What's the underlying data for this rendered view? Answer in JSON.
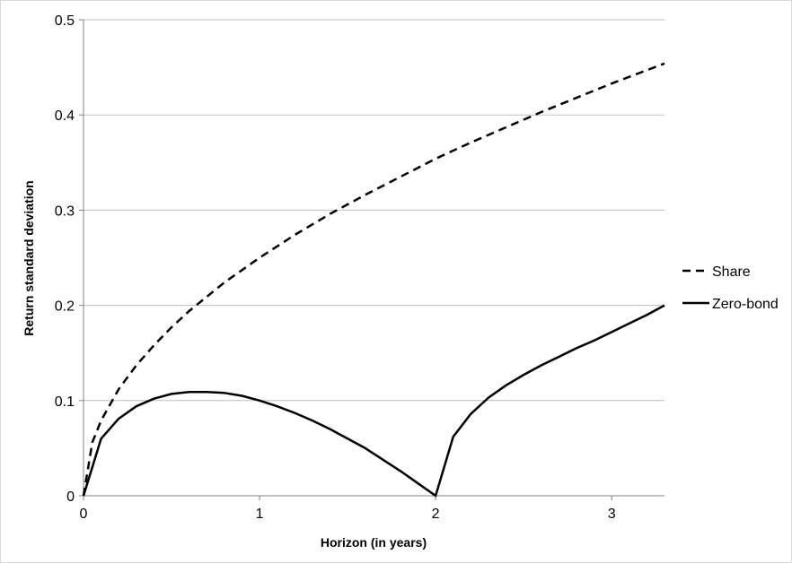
{
  "chart_data": {
    "type": "line",
    "title": "",
    "xlabel": "Horizon (in years)",
    "ylabel": "Return standard deviation",
    "xlim": [
      0,
      3.3
    ],
    "ylim": [
      0,
      0.5
    ],
    "x_ticks": [
      0,
      1,
      2,
      3
    ],
    "x_tick_labels": [
      "0",
      "1",
      "2",
      "3"
    ],
    "y_ticks": [
      0,
      0.1,
      0.2,
      0.3,
      0.4,
      0.5
    ],
    "y_tick_labels": [
      "0",
      "0.1",
      "0.2",
      "0.3",
      "0.4",
      "0.5"
    ],
    "grid": "horizontal",
    "legend_position": "right",
    "colors": {
      "line": "#000000",
      "grid": "#bfbfbf",
      "axis": "#808080"
    },
    "series": [
      {
        "name": "Share",
        "style": "dashed",
        "x": [
          0,
          0.05,
          0.1,
          0.2,
          0.3,
          0.4,
          0.5,
          0.6,
          0.7,
          0.8,
          0.9,
          1.0,
          1.2,
          1.4,
          1.6,
          1.8,
          2.0,
          2.2,
          2.4,
          2.6,
          2.8,
          3.0,
          3.2,
          3.3
        ],
        "y": [
          0,
          0.056,
          0.079,
          0.112,
          0.137,
          0.158,
          0.177,
          0.194,
          0.209,
          0.224,
          0.237,
          0.25,
          0.274,
          0.296,
          0.316,
          0.335,
          0.354,
          0.371,
          0.387,
          0.403,
          0.418,
          0.433,
          0.447,
          0.454
        ]
      },
      {
        "name": "Zero-bond",
        "style": "solid",
        "x": [
          0,
          0.1,
          0.2,
          0.3,
          0.4,
          0.5,
          0.6,
          0.7,
          0.8,
          0.9,
          1.0,
          1.1,
          1.2,
          1.3,
          1.4,
          1.5,
          1.6,
          1.7,
          1.8,
          1.9,
          2.0,
          2.1,
          2.2,
          2.3,
          2.4,
          2.5,
          2.6,
          2.7,
          2.8,
          2.9,
          3.0,
          3.1,
          3.2,
          3.3
        ],
        "y": [
          0,
          0.06,
          0.081,
          0.094,
          0.102,
          0.107,
          0.109,
          0.109,
          0.108,
          0.105,
          0.1,
          0.094,
          0.087,
          0.079,
          0.07,
          0.06,
          0.05,
          0.038,
          0.026,
          0.013,
          0,
          0.062,
          0.086,
          0.103,
          0.116,
          0.127,
          0.137,
          0.146,
          0.155,
          0.163,
          0.172,
          0.181,
          0.19,
          0.2
        ]
      }
    ]
  }
}
